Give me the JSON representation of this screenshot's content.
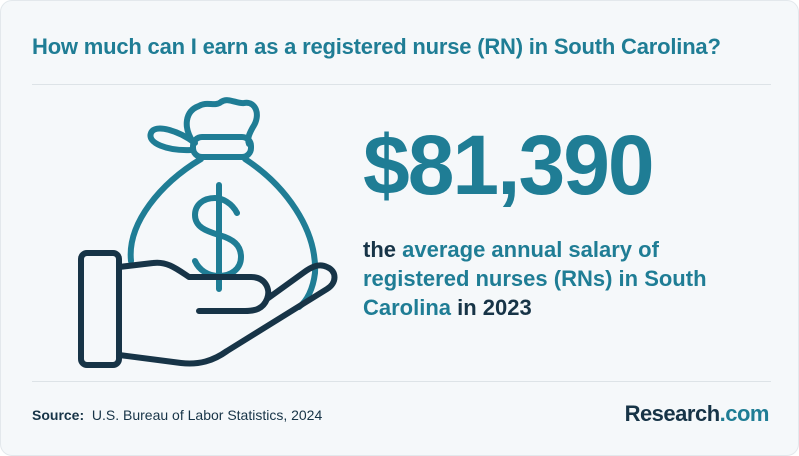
{
  "header": {
    "title": "How much can I earn as a registered nurse (RN) in South Carolina?"
  },
  "stat": {
    "amount": "$81,390",
    "desc_prefix": "the ",
    "desc_accent_1": "average annual salary of registered nurses (RNs) in South Carolina",
    "desc_suffix": " in 2023"
  },
  "illustration": {
    "icon": "money-bag-in-hand-icon",
    "symbol": "$",
    "colors": {
      "bag": "#1f7d95",
      "hand": "#173447"
    }
  },
  "footer": {
    "source_label": "Source:",
    "source_text": "U.S. Bureau of Labor Statistics, 2024",
    "brand_name": "Research",
    "brand_tld": ".com"
  },
  "colors": {
    "accent": "#1f7d95",
    "dark": "#173447",
    "background": "#f5f8fa"
  }
}
